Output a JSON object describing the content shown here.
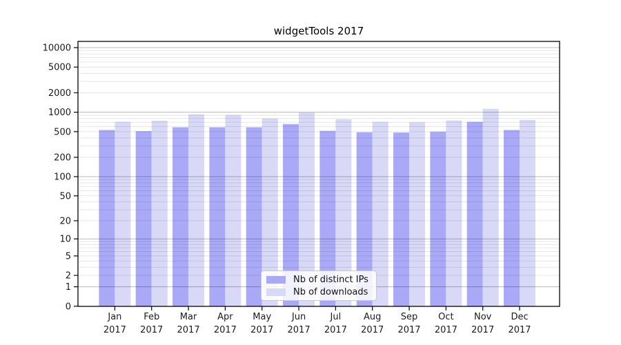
{
  "chart_data": {
    "type": "bar",
    "title": "widgetTools 2017",
    "categories": [
      "Jan",
      "Feb",
      "Mar",
      "Apr",
      "May",
      "Jun",
      "Jul",
      "Aug",
      "Sep",
      "Oct",
      "Nov",
      "Dec"
    ],
    "year": "2017",
    "series": [
      {
        "name": "Nb of distinct IPs",
        "color": "#a9a9f8",
        "values": [
          530,
          510,
          585,
          585,
          585,
          655,
          515,
          490,
          485,
          500,
          710,
          530
        ]
      },
      {
        "name": "Nb of downloads",
        "color": "#d8d8f7",
        "values": [
          710,
          740,
          925,
          910,
          800,
          990,
          780,
          710,
          700,
          745,
          1130,
          760
        ]
      }
    ],
    "yscale": "log10(value+1)",
    "y_ticks": [
      10000,
      5000,
      2000,
      1000,
      500,
      200,
      100,
      50,
      20,
      10,
      5,
      2,
      1,
      0
    ],
    "ylim": [
      0,
      11800
    ],
    "grid": "horizontal",
    "grid_major_at": [
      1,
      10,
      100,
      1000,
      10000
    ],
    "legend_position": "inside-bottom-center",
    "axis_color": "#000000",
    "text_color": "#1a1a1a"
  }
}
